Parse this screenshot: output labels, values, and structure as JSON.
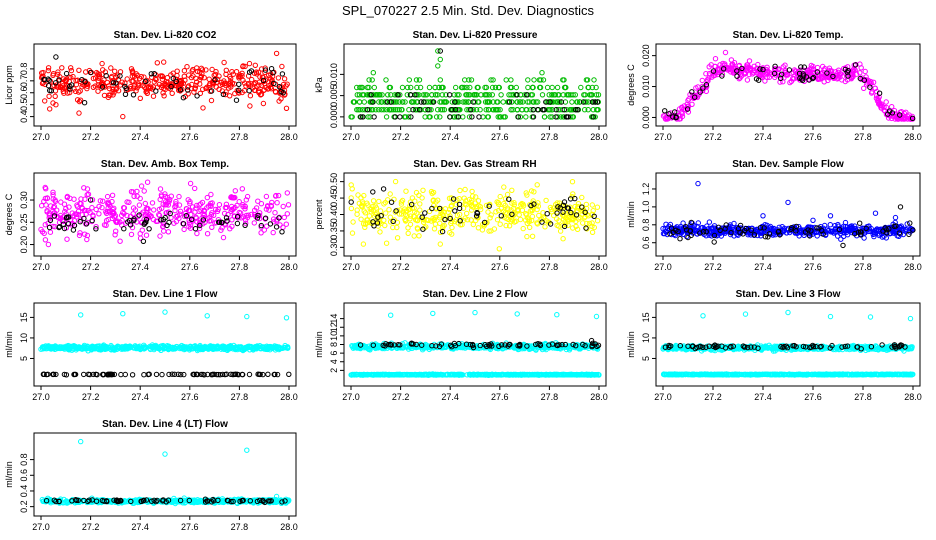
{
  "figure_title": "SPL_070227  2.5 Min. Std. Dev. Diagnostics",
  "chart_data": [
    {
      "type": "scatter",
      "title": "Stan. Dev. Li-820 CO2",
      "ylabel": "Licor ppm",
      "xlim": [
        27.0,
        28.0
      ],
      "ylim": [
        0.38,
        0.95
      ],
      "xticks": [
        "27.0",
        "27.2",
        "27.4",
        "27.6",
        "27.8",
        "28.0"
      ],
      "yticks": [
        {
          "v": 0.4,
          "label": "0.4"
        },
        {
          "v": 0.5,
          "label": "0.5"
        },
        {
          "v": 0.6,
          "label": "0.6"
        },
        {
          "v": 0.7,
          "label": "0.7"
        },
        {
          "v": 0.8,
          "label": "0.8"
        }
      ],
      "series": [
        {
          "name": "primary",
          "color": "#ff0000",
          "kind": "band",
          "mean": 0.68,
          "spread": 0.09,
          "count": 420,
          "outliers": [
            [
              27.33,
              0.4
            ],
            [
              27.06,
              0.5
            ],
            [
              27.99,
              0.47
            ],
            [
              27.95,
              0.93
            ]
          ]
        },
        {
          "name": "reference",
          "color": "#000000",
          "kind": "band",
          "mean": 0.68,
          "spread": 0.09,
          "count": 55,
          "outliers": [
            [
              27.06,
              0.9
            ]
          ]
        }
      ]
    },
    {
      "type": "scatter",
      "title": "Stan. Dev. Li-820 Pressure",
      "ylabel": "kPa",
      "xlim": [
        27.0,
        28.0
      ],
      "ylim": [
        -0.0005,
        0.0155
      ],
      "xticks": [
        "27.0",
        "27.2",
        "27.4",
        "27.6",
        "27.8",
        "28.0"
      ],
      "yticks": [
        {
          "v": 0.0,
          "label": "0.000"
        },
        {
          "v": 0.005,
          "label": "0.005"
        },
        {
          "v": 0.01,
          "label": "0.010"
        }
      ],
      "series": [
        {
          "name": "primary",
          "color": "#00bb00",
          "kind": "levels",
          "levels": [
            0.0,
            0.0017,
            0.0035,
            0.0052,
            0.0069,
            0.0087
          ],
          "weights": [
            0.14,
            0.2,
            0.26,
            0.22,
            0.12,
            0.06
          ],
          "count": 460,
          "outliers": [
            [
              27.35,
              0.0155
            ],
            [
              27.36,
              0.0135
            ],
            [
              27.35,
              0.012
            ],
            [
              27.09,
              0.0104
            ],
            [
              27.77,
              0.0104
            ],
            [
              27.98,
              0.0087
            ]
          ]
        },
        {
          "name": "reference",
          "color": "#000000",
          "kind": "levels",
          "levels": [
            0.0,
            0.0017,
            0.0035,
            0.0052
          ],
          "weights": [
            0.35,
            0.3,
            0.25,
            0.1
          ],
          "count": 55,
          "outliers": [
            [
              27.36,
              0.0155
            ]
          ]
        }
      ]
    },
    {
      "type": "scatter",
      "title": "Stan. Dev. Li-820 Temp.",
      "ylabel": "degrees C",
      "xlim": [
        27.0,
        28.0
      ],
      "ylim": [
        -0.0005,
        0.0215
      ],
      "xticks": [
        "27.0",
        "27.2",
        "27.4",
        "27.6",
        "27.8",
        "28.0"
      ],
      "yticks": [
        {
          "v": 0.0,
          "label": "0.000"
        },
        {
          "v": 0.01,
          "label": "0.010"
        },
        {
          "v": 0.02,
          "label": "0.020"
        }
      ],
      "series": [
        {
          "name": "primary",
          "color": "#ff00ff",
          "kind": "curve",
          "curve": [
            [
              27.0,
              0.0
            ],
            [
              27.05,
              0.0
            ],
            [
              27.09,
              0.003
            ],
            [
              27.15,
              0.009
            ],
            [
              27.2,
              0.0145
            ],
            [
              27.24,
              0.0165
            ],
            [
              27.3,
              0.0155
            ],
            [
              27.5,
              0.014
            ],
            [
              27.7,
              0.0135
            ],
            [
              27.78,
              0.0145
            ],
            [
              27.82,
              0.012
            ],
            [
              27.86,
              0.006
            ],
            [
              27.9,
              0.0015
            ],
            [
              27.93,
              0.0
            ],
            [
              28.0,
              0.0
            ]
          ],
          "spread": 0.0012,
          "count": 440,
          "outliers": [
            [
              27.25,
              0.021
            ],
            [
              27.21,
              0.019
            ],
            [
              27.6,
              0.0165
            ]
          ]
        },
        {
          "name": "reference",
          "color": "#000000",
          "kind": "curve",
          "curve": [
            [
              27.0,
              0.0
            ],
            [
              27.05,
              0.0
            ],
            [
              27.09,
              0.003
            ],
            [
              27.15,
              0.009
            ],
            [
              27.2,
              0.0145
            ],
            [
              27.3,
              0.0145
            ],
            [
              27.5,
              0.0135
            ],
            [
              27.7,
              0.0135
            ],
            [
              27.78,
              0.0145
            ],
            [
              27.82,
              0.012
            ],
            [
              27.86,
              0.006
            ],
            [
              27.9,
              0.0015
            ],
            [
              27.93,
              0.0
            ],
            [
              28.0,
              0.0
            ]
          ],
          "spread": 0.0012,
          "count": 55,
          "outliers": [
            [
              27.77,
              0.017
            ]
          ]
        }
      ]
    },
    {
      "type": "scatter",
      "title": "Stan. Dev. Amb. Box Temp.",
      "ylabel": "degrees C",
      "xlim": [
        27.0,
        28.0
      ],
      "ylim": [
        0.19,
        0.345
      ],
      "xticks": [
        "27.0",
        "27.2",
        "27.4",
        "27.6",
        "27.8",
        "28.0"
      ],
      "yticks": [
        {
          "v": 0.2,
          "label": "0.20"
        },
        {
          "v": 0.25,
          "label": "0.25"
        },
        {
          "v": 0.3,
          "label": "0.30"
        }
      ],
      "series": [
        {
          "name": "primary",
          "color": "#ff00ff",
          "kind": "band",
          "mean": 0.272,
          "spread": 0.033,
          "count": 420,
          "outliers": [
            [
              27.43,
              0.34
            ],
            [
              27.03,
              0.2
            ]
          ]
        },
        {
          "name": "reference",
          "color": "#000000",
          "kind": "band",
          "mean": 0.248,
          "spread": 0.013,
          "count": 60,
          "outliers": [
            [
              27.2,
              0.3
            ]
          ]
        }
      ]
    },
    {
      "type": "scatter",
      "title": "Stan. Dev. Gas Stream RH",
      "ylabel": "percent",
      "xlim": [
        27.0,
        28.0
      ],
      "ylim": [
        0.295,
        0.505
      ],
      "xticks": [
        "27.0",
        "27.2",
        "27.4",
        "27.6",
        "27.8",
        "28.0"
      ],
      "yticks": [
        {
          "v": 0.3,
          "label": "0.30"
        },
        {
          "v": 0.35,
          "label": "0.35"
        },
        {
          "v": 0.4,
          "label": "0.40"
        },
        {
          "v": 0.45,
          "label": "0.45"
        },
        {
          "v": 0.5,
          "label": "0.50"
        }
      ],
      "series": [
        {
          "name": "primary",
          "color": "#ffff00",
          "kind": "band",
          "mean": 0.4,
          "spread": 0.045,
          "count": 420,
          "outliers": [
            [
              27.18,
              0.5
            ],
            [
              27.36,
              0.31
            ],
            [
              27.05,
              0.31
            ]
          ]
        },
        {
          "name": "reference",
          "color": "#000000",
          "kind": "band",
          "mean": 0.405,
          "spread": 0.035,
          "count": 55,
          "outliers": []
        }
      ]
    },
    {
      "type": "scatter",
      "title": "Stan. Dev. Sample Flow",
      "ylabel": "ml/min",
      "xlim": [
        27.0,
        28.0
      ],
      "ylim": [
        0.53,
        1.3
      ],
      "xticks": [
        "27.0",
        "27.2",
        "27.4",
        "27.6",
        "27.8",
        "28.0"
      ],
      "yticks": [
        {
          "v": 0.6,
          "label": "0.6"
        },
        {
          "v": 0.8,
          "label": "0.8"
        },
        {
          "v": 1.0,
          "label": "1.0"
        },
        {
          "v": 1.2,
          "label": "1.2"
        }
      ],
      "series": [
        {
          "name": "primary",
          "color": "#0000ff",
          "kind": "band",
          "mean": 0.74,
          "spread": 0.045,
          "count": 470,
          "outliers": [
            [
              27.14,
              1.26
            ],
            [
              27.5,
              1.05
            ],
            [
              27.4,
              0.9
            ],
            [
              27.67,
              0.9
            ],
            [
              27.85,
              0.93
            ],
            [
              27.93,
              0.88
            ],
            [
              27.6,
              0.85
            ]
          ]
        },
        {
          "name": "reference",
          "color": "#000000",
          "kind": "band",
          "mean": 0.73,
          "spread": 0.05,
          "count": 70,
          "outliers": [
            [
              27.95,
              1.0
            ],
            [
              27.72,
              0.57
            ]
          ]
        }
      ]
    },
    {
      "type": "scatter",
      "title": "Stan. Dev. Line 1 Flow",
      "ylabel": "ml/min",
      "xlim": [
        27.0,
        28.0
      ],
      "ylim": [
        0.0,
        16.8
      ],
      "xticks": [
        "27.0",
        "27.2",
        "27.4",
        "27.6",
        "27.8",
        "28.0"
      ],
      "yticks": [
        {
          "v": 5,
          "label": "5"
        },
        {
          "v": 10,
          "label": "10"
        },
        {
          "v": 15,
          "label": "15"
        }
      ],
      "series": [
        {
          "name": "primary",
          "color": "#00ffff",
          "kind": "band",
          "mean": 7.6,
          "spread": 0.35,
          "count": 520,
          "outliers": [
            [
              27.16,
              15.6
            ],
            [
              27.33,
              15.9
            ],
            [
              27.5,
              16.3
            ],
            [
              27.67,
              15.4
            ],
            [
              27.83,
              15.2
            ],
            [
              27.99,
              14.9
            ]
          ]
        },
        {
          "name": "reference",
          "color": "#000000",
          "kind": "band",
          "mean": 1.1,
          "spread": 0.05,
          "count": 90,
          "outliers": []
        }
      ]
    },
    {
      "type": "scatter",
      "title": "Stan. Dev. Line 2 Flow",
      "ylabel": "ml/min",
      "xlim": [
        27.0,
        28.0
      ],
      "ylim": [
        0.0,
        16.0
      ],
      "xticks": [
        "27.0",
        "27.2",
        "27.4",
        "27.6",
        "27.8",
        "28.0"
      ],
      "yticks": [
        {
          "v": 2,
          "label": "2"
        },
        {
          "v": 4,
          "label": "4"
        },
        {
          "v": 6,
          "label": "6"
        },
        {
          "v": 8,
          "label": "8"
        },
        {
          "v": 10,
          "label": "10"
        },
        {
          "v": 12,
          "label": "12"
        },
        {
          "v": 14,
          "label": "14"
        }
      ],
      "series": [
        {
          "name": "primary",
          "color": "#00ffff",
          "kind": "band",
          "mean": 7.5,
          "spread": 0.4,
          "count": 520,
          "outliers": [
            [
              27.16,
              14.8
            ],
            [
              27.33,
              15.2
            ],
            [
              27.5,
              15.4
            ],
            [
              27.67,
              15.1
            ],
            [
              27.83,
              14.9
            ],
            [
              27.99,
              14.5
            ]
          ]
        },
        {
          "name": "primary-low",
          "color": "#00ffff",
          "kind": "band",
          "mean": 1.0,
          "spread": 0.06,
          "count": 500,
          "outliers": []
        },
        {
          "name": "reference",
          "color": "#000000",
          "kind": "band",
          "mean": 7.9,
          "spread": 0.25,
          "count": 70,
          "outliers": [
            [
              27.97,
              8.9
            ]
          ]
        }
      ]
    },
    {
      "type": "scatter",
      "title": "Stan. Dev. Line 3 Flow",
      "ylabel": "ml/min",
      "xlim": [
        27.0,
        28.0
      ],
      "ylim": [
        0.0,
        16.8
      ],
      "xticks": [
        "27.0",
        "27.2",
        "27.4",
        "27.6",
        "27.8",
        "28.0"
      ],
      "yticks": [
        {
          "v": 5,
          "label": "5"
        },
        {
          "v": 10,
          "label": "10"
        },
        {
          "v": 15,
          "label": "15"
        }
      ],
      "series": [
        {
          "name": "primary",
          "color": "#00ffff",
          "kind": "band",
          "mean": 7.6,
          "spread": 0.35,
          "count": 520,
          "outliers": [
            [
              27.16,
              15.4
            ],
            [
              27.33,
              15.8
            ],
            [
              27.5,
              16.2
            ],
            [
              27.67,
              15.2
            ],
            [
              27.83,
              15.1
            ],
            [
              27.99,
              14.7
            ]
          ]
        },
        {
          "name": "primary-low",
          "color": "#00ffff",
          "kind": "band",
          "mean": 1.1,
          "spread": 0.06,
          "count": 500,
          "outliers": []
        },
        {
          "name": "reference",
          "color": "#000000",
          "kind": "band",
          "mean": 7.9,
          "spread": 0.25,
          "count": 70,
          "outliers": []
        }
      ]
    },
    {
      "type": "scatter",
      "title": "Stan. Dev. Line 4 (LT) Flow",
      "ylabel": "ml/min",
      "xlim": [
        27.0,
        28.0
      ],
      "ylim": [
        0.17,
        1.05
      ],
      "xticks": [
        "27.0",
        "27.2",
        "27.4",
        "27.6",
        "27.8",
        "28.0"
      ],
      "yticks": [
        {
          "v": 0.2,
          "label": "0.2"
        },
        {
          "v": 0.4,
          "label": "0.4"
        },
        {
          "v": 0.6,
          "label": "0.6"
        },
        {
          "v": 0.8,
          "label": "0.8"
        }
      ],
      "series": [
        {
          "name": "primary",
          "color": "#00ffff",
          "kind": "band",
          "mean": 0.27,
          "spread": 0.015,
          "count": 520,
          "outliers": [
            [
              27.16,
              1.03
            ],
            [
              27.5,
              0.87
            ],
            [
              27.83,
              0.92
            ],
            [
              27.95,
              0.33
            ]
          ]
        },
        {
          "name": "reference",
          "color": "#000000",
          "kind": "band",
          "mean": 0.275,
          "spread": 0.012,
          "count": 70,
          "outliers": []
        }
      ]
    }
  ]
}
